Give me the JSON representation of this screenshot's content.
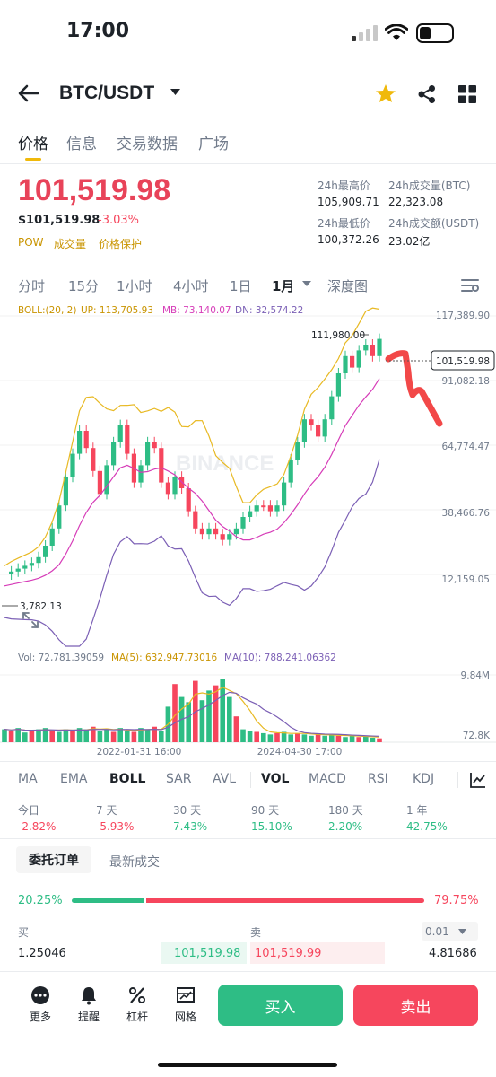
{
  "status_bar": {
    "time": "17:00"
  },
  "header": {
    "pair": "BTC/USDT"
  },
  "tabs": [
    {
      "label": "价格",
      "active": true
    },
    {
      "label": "信息"
    },
    {
      "label": "交易数据"
    },
    {
      "label": "广场"
    }
  ],
  "ticker": {
    "last_price": "101,519.98",
    "usd_price": "$101,519.98",
    "change": "-3.03%",
    "tags": [
      "POW",
      "成交量",
      "价格保护"
    ],
    "high_label": "24h最高价",
    "high_value": "105,909.71",
    "vol_btc_label": "24h成交量(BTC)",
    "vol_btc_value": "22,323.08",
    "low_label": "24h最低价",
    "low_value": "100,372.26",
    "vol_usdt_label": "24h成交额(USDT)",
    "vol_usdt_value": "23.02亿"
  },
  "timeframes": [
    "分时",
    "15分",
    "1小时",
    "4小时",
    "1日",
    "1月",
    "深度图"
  ],
  "active_timeframe": "1月",
  "indicators_line": {
    "boll": "BOLL:(20, 2)",
    "up": "UP: 113,705.93",
    "mb": "MB: 73,140.07",
    "dn": "DN: 32,574.22"
  },
  "price_axis": [
    "117,389.90",
    "91,082.18",
    "64,774.47",
    "38,466.76",
    "12,159.05"
  ],
  "annotations": {
    "max": "111,980.00",
    "min": "3,782.13",
    "current": "101,519.98",
    "watermark": "BINANCE"
  },
  "volume_line": {
    "vol": "Vol: 72,781.39059",
    "ma5": "MA(5): 632,947.73016",
    "ma10": "MA(10): 788,241.06362"
  },
  "volume_axis": [
    "9.84M",
    "72.8K"
  ],
  "date_axis": [
    "2022-01-31 16:00",
    "2024-04-30 17:00"
  ],
  "indicator_tabs": [
    "MA",
    "EMA",
    "BOLL",
    "SAR",
    "AVL",
    "VOL",
    "MACD",
    "RSI",
    "KDJ"
  ],
  "active_indicators": [
    "BOLL",
    "VOL"
  ],
  "performance": [
    {
      "label": "今日",
      "value": "-2.82%",
      "dir": "down"
    },
    {
      "label": "7 天",
      "value": "-5.93%",
      "dir": "down"
    },
    {
      "label": "30 天",
      "value": "7.43%",
      "dir": "up"
    },
    {
      "label": "90 天",
      "value": "15.10%",
      "dir": "up"
    },
    {
      "label": "180 天",
      "value": "2.20%",
      "dir": "up"
    },
    {
      "label": "1 年",
      "value": "42.75%",
      "dir": "up"
    }
  ],
  "order_tabs": [
    "委托订单",
    "最新成交"
  ],
  "ratio": {
    "buy": "20.25%",
    "sell": "79.75%",
    "buy_fraction": 0.2025
  },
  "orderbook": {
    "buy_label": "买",
    "sell_label": "卖",
    "precision": "0.01",
    "rows": [
      {
        "bid_qty": "1.25046",
        "bid_price": "101,519.98",
        "ask_price": "101,519.99",
        "ask_qty": "4.81686"
      }
    ]
  },
  "bottom_nav": [
    {
      "label": "更多",
      "icon": "more-icon"
    },
    {
      "label": "提醒",
      "icon": "bell-icon"
    },
    {
      "label": "杠杆",
      "icon": "leverage-icon"
    },
    {
      "label": "网格",
      "icon": "grid-bot-icon"
    }
  ],
  "actions": {
    "buy": "买入",
    "sell": "卖出"
  },
  "colors": {
    "up": "#2ebd85",
    "down": "#f6465d",
    "accent": "#f0b90b",
    "boll_up": "#e8b923",
    "boll_mb": "#d63cb8",
    "boll_dn": "#7b5fb5"
  }
}
